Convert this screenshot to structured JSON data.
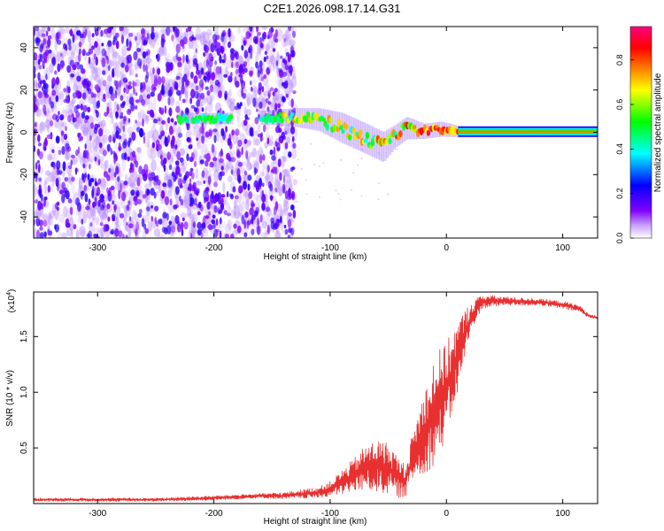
{
  "title": "C2E1.2026.098.17.14.G31",
  "chart_data": [
    {
      "type": "heatmap",
      "xlabel": "Height of straight line (km)",
      "ylabel": "Frequency (Hz)",
      "xlim": [
        -355,
        130
      ],
      "ylim": [
        -50,
        50
      ],
      "x_ticks": [
        -300,
        -200,
        -100,
        0,
        100
      ],
      "y_ticks": [
        -40,
        -20,
        0,
        20,
        40
      ],
      "noise_region": {
        "x_range": [
          -355,
          -130
        ],
        "y_range": [
          -50,
          50
        ]
      },
      "ridge": [
        {
          "x": -230,
          "y": 6.5,
          "width": 1.5
        },
        {
          "x": -210,
          "y": 6.5,
          "width": 1.5
        },
        {
          "x": -190,
          "y": 6.5,
          "width": 1.5
        },
        {
          "x": -150,
          "y": 7,
          "width": 2
        },
        {
          "x": -130,
          "y": 7,
          "width": 2.5
        },
        {
          "x": -110,
          "y": 6,
          "width": 3
        },
        {
          "x": -90,
          "y": 2,
          "width": 4
        },
        {
          "x": -70,
          "y": -3,
          "width": 4
        },
        {
          "x": -55,
          "y": -7,
          "width": 4
        },
        {
          "x": -45,
          "y": -2,
          "width": 3
        },
        {
          "x": -35,
          "y": 2,
          "width": 3
        },
        {
          "x": -20,
          "y": 0.5,
          "width": 2
        },
        {
          "x": -5,
          "y": 1.5,
          "width": 2
        },
        {
          "x": 10,
          "y": 0.3,
          "width": 1.5
        },
        {
          "x": 130,
          "y": 0.3,
          "width": 1.5
        }
      ],
      "colorbar": {
        "label": "Normalized spectral amplitude",
        "ticks": [
          0.0,
          0.2,
          0.4,
          0.6,
          0.8
        ],
        "range": [
          0,
          0.95
        ],
        "colors": [
          "#ffffff",
          "#8000ff",
          "#0000ff",
          "#00ffff",
          "#00ff00",
          "#ffff00",
          "#ff8000",
          "#ff0000",
          "#ff0080"
        ]
      }
    },
    {
      "type": "line",
      "xlabel": "Height of straight line (km)",
      "ylabel": "SNR (10 * v/v)",
      "y_multiplier": "(x10",
      "y_exponent": "4",
      "y_multiplier_close": ")",
      "xlim": [
        -355,
        130
      ],
      "ylim": [
        0,
        1.9
      ],
      "x_ticks": [
        -300,
        -200,
        -100,
        0,
        100
      ],
      "y_ticks": [
        0.5,
        1.0,
        1.5
      ],
      "y_tick_labels": [
        "0.5",
        "1.0",
        "1.5"
      ],
      "line_color": "#e83030",
      "envelope_x": [
        -355,
        -250,
        -200,
        -160,
        -140,
        -110,
        -100,
        -90,
        -80,
        -70,
        -60,
        -50,
        -40,
        -35,
        -30,
        -20,
        -10,
        -5,
        0,
        10,
        20,
        30,
        50,
        80,
        100,
        115,
        120,
        130
      ],
      "envelope_hi": [
        0.05,
        0.05,
        0.07,
        0.09,
        0.1,
        0.15,
        0.2,
        0.3,
        0.4,
        0.52,
        0.58,
        0.55,
        0.4,
        0.35,
        0.6,
        1.0,
        1.35,
        1.4,
        1.45,
        1.65,
        1.8,
        1.88,
        1.86,
        1.84,
        1.82,
        1.78,
        1.72,
        1.68
      ],
      "envelope_lo": [
        0.02,
        0.02,
        0.03,
        0.05,
        0.04,
        0.05,
        0.06,
        0.08,
        0.1,
        0.12,
        0.1,
        0.08,
        0.05,
        0.06,
        0.2,
        0.25,
        0.35,
        0.45,
        0.6,
        1.0,
        1.5,
        1.75,
        1.78,
        1.78,
        1.75,
        1.72,
        1.68,
        1.65
      ]
    }
  ]
}
